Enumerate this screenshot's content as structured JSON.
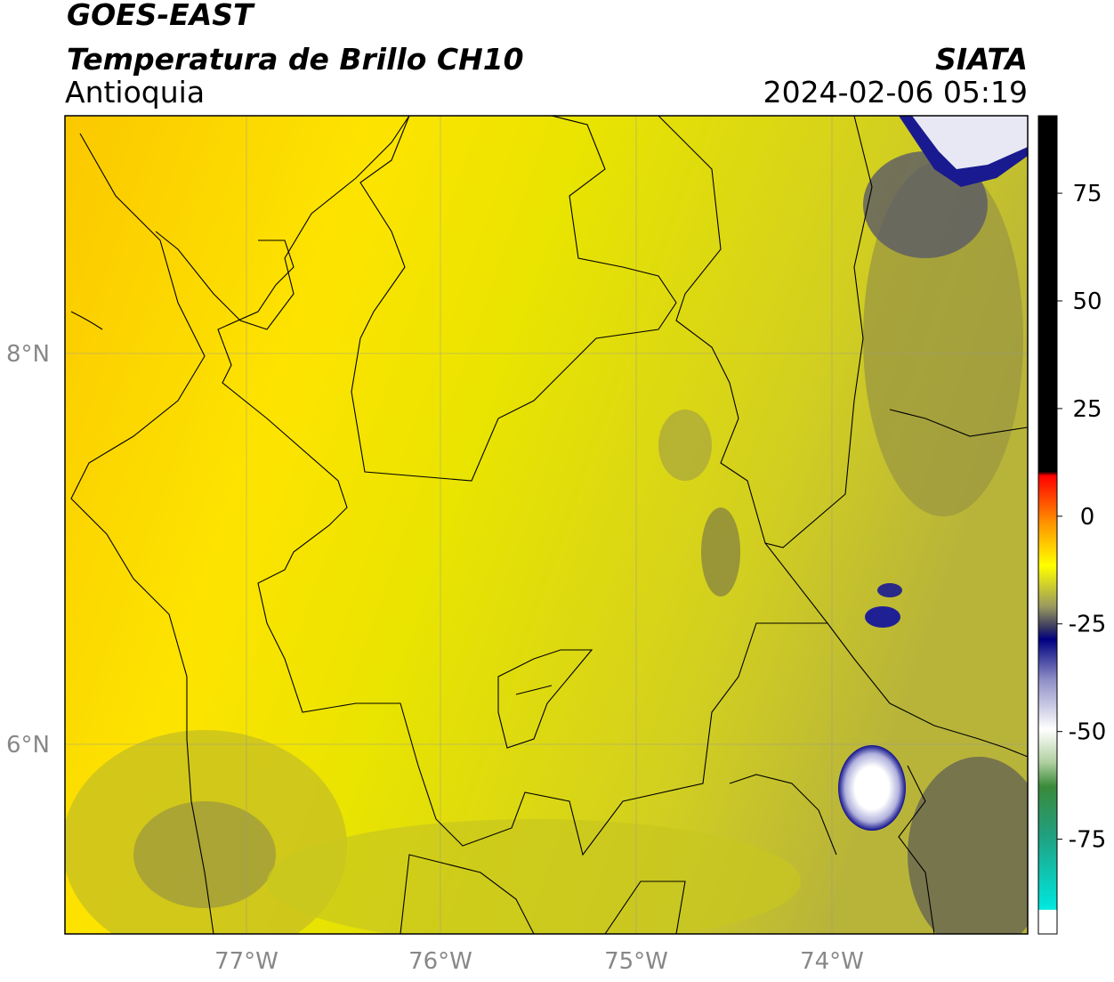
{
  "header": {
    "title": "GOES-EAST",
    "subtitle": "Temperatura de Brillo CH10",
    "region": "Antioquia",
    "source": "SIATA",
    "timestamp": "2024-02-06 05:19"
  },
  "map": {
    "lat_labels": [
      "8°N",
      "6°N"
    ],
    "lon_labels": [
      "77°W",
      "76°W",
      "75°W",
      "74°W"
    ]
  },
  "colorbar": {
    "limits": [
      -97,
      93
    ],
    "ticks": [
      75,
      50,
      25,
      0,
      -25,
      -50,
      -75
    ]
  }
}
